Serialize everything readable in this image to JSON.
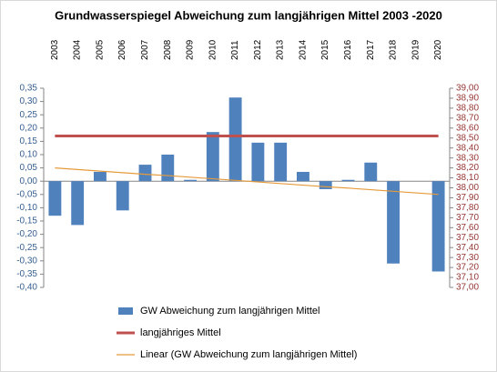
{
  "chart_data": {
    "type": "bar",
    "title": "Grundwasserspiegel Abweichung zum langjährigen Mittel 2003 -2020",
    "categories": [
      "2003",
      "2004",
      "2005",
      "2006",
      "2007",
      "2008",
      "2009",
      "2010",
      "2011",
      "2012",
      "2013",
      "2014",
      "2015",
      "2016",
      "2017",
      "2018",
      "2019",
      "2020"
    ],
    "series": [
      {
        "name": "GW Abweichung zum langjährigen Mittel",
        "type": "bar",
        "color": "#4f81bd",
        "values": [
          -0.13,
          -0.165,
          0.035,
          -0.11,
          0.062,
          0.1,
          0.005,
          0.185,
          0.315,
          0.145,
          0.145,
          0.035,
          -0.03,
          0.005,
          0.07,
          -0.31,
          0,
          -0.34
        ]
      },
      {
        "name": "langjähriges Mittel",
        "type": "line",
        "axis": "y2",
        "color": "#c0504d",
        "values": [
          38.52,
          38.52,
          38.52,
          38.52,
          38.52,
          38.52,
          38.52,
          38.52,
          38.52,
          38.52,
          38.52,
          38.52,
          38.52,
          38.52,
          38.52,
          38.52,
          38.52,
          38.52
        ]
      },
      {
        "name": "Linear (GW Abweichung zum langjährigen Mittel)",
        "type": "line",
        "color": "#e59b3c",
        "values": [
          0.05,
          0.044,
          0.038,
          0.032,
          0.026,
          0.021,
          0.015,
          0.009,
          0.003,
          -0.003,
          -0.009,
          -0.015,
          -0.021,
          -0.026,
          -0.032,
          -0.038,
          -0.044,
          -0.05
        ]
      }
    ],
    "ylim": [
      -0.4,
      0.35
    ],
    "yticks": [
      {
        "value": 0.35,
        "label": "0,35"
      },
      {
        "value": 0.3,
        "label": "0,30"
      },
      {
        "value": 0.25,
        "label": "0,25"
      },
      {
        "value": 0.2,
        "label": "0,20"
      },
      {
        "value": 0.15,
        "label": "0,15"
      },
      {
        "value": 0.1,
        "label": "0,10"
      },
      {
        "value": 0.05,
        "label": "0,05"
      },
      {
        "value": 0,
        "label": "0,00"
      },
      {
        "value": -0.05,
        "label": "-0,05"
      },
      {
        "value": -0.1,
        "label": "-0,10"
      },
      {
        "value": -0.15,
        "label": "-0,15"
      },
      {
        "value": -0.2,
        "label": "-0,20"
      },
      {
        "value": -0.25,
        "label": "-0,25"
      },
      {
        "value": -0.3,
        "label": "-0,30"
      },
      {
        "value": -0.35,
        "label": "-0,35"
      },
      {
        "value": -0.4,
        "label": "-0,40"
      }
    ],
    "y2lim": [
      37,
      39
    ],
    "y2ticks": [
      {
        "value": 39,
        "label": "39,00"
      },
      {
        "value": 38.9,
        "label": "38,90"
      },
      {
        "value": 38.8,
        "label": "38,80"
      },
      {
        "value": 38.7,
        "label": "38,70"
      },
      {
        "value": 38.6,
        "label": "38,60"
      },
      {
        "value": 38.5,
        "label": "38,50"
      },
      {
        "value": 38.4,
        "label": "38,40"
      },
      {
        "value": 38.3,
        "label": "38,30"
      },
      {
        "value": 38.2,
        "label": "38,20"
      },
      {
        "value": 38.1,
        "label": "38,10"
      },
      {
        "value": 38,
        "label": "38,00"
      },
      {
        "value": 37.9,
        "label": "37,90"
      },
      {
        "value": 37.8,
        "label": "37,80"
      },
      {
        "value": 37.7,
        "label": "37,70"
      },
      {
        "value": 37.6,
        "label": "37,60"
      },
      {
        "value": 37.5,
        "label": "37,50"
      },
      {
        "value": 37.4,
        "label": "37,40"
      },
      {
        "value": 37.3,
        "label": "37,30"
      },
      {
        "value": 37.2,
        "label": "37,20"
      },
      {
        "value": 37.1,
        "label": "37,10"
      },
      {
        "value": 37,
        "label": "37,00"
      }
    ]
  }
}
